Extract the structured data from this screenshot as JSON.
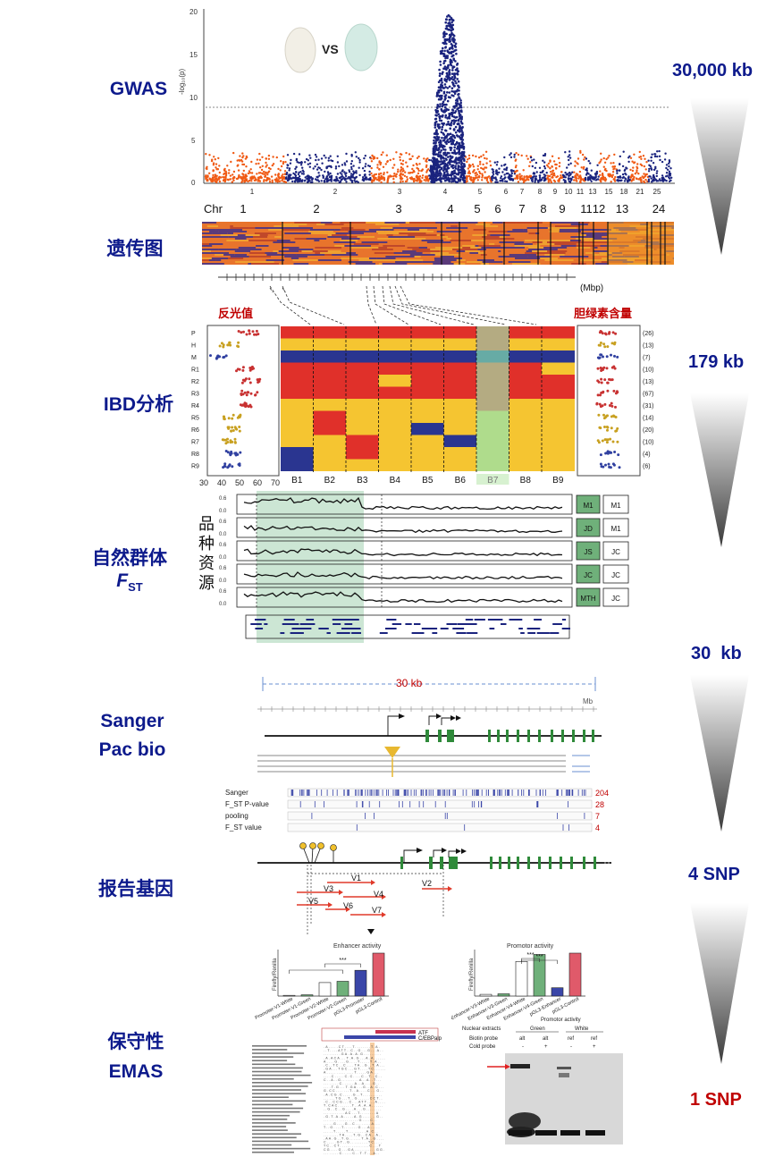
{
  "steps": {
    "gwas": "GWAS",
    "genetic_map": "遗传图",
    "ibd": "IBD分析",
    "fst_line1": "自然群体",
    "fst_line2_main": "F",
    "fst_line2_sub": "ST",
    "sanger": "Sanger",
    "pacbio": "Pac bio",
    "reporter": "报告基因",
    "conservation": "保守性",
    "emsa": "EMAS"
  },
  "resolution": {
    "r1": "30,000 kb",
    "r2": "179 kb",
    "r3": "30  kb",
    "r4": "4 SNP",
    "r5": "1 SNP"
  },
  "colors": {
    "navy": "#0d1a8c",
    "accent_red": "#c00000",
    "orange": "#f05a14",
    "blue": "#1a237e",
    "red_block": "#e0302a",
    "yellow_block": "#f5c531",
    "green_shade": "#cde8d6"
  },
  "gwas": {
    "vs": "VS",
    "ylabel": "-log₁₀(p)",
    "yticks": [
      "20",
      "15",
      "10",
      "5",
      "0"
    ],
    "chrs": [
      "1",
      "2",
      "3",
      "4",
      "5",
      "6",
      "7",
      "8",
      "9",
      "10",
      "11",
      "13",
      "15",
      "18",
      "21",
      "25"
    ]
  },
  "genetic_map": {
    "chr_label": "Chr",
    "chrs": [
      "1",
      "2",
      "3",
      "4",
      "5",
      "6",
      "7",
      "8",
      "9",
      "11",
      "12",
      "13",
      "24"
    ],
    "unit": "(Mbp)"
  },
  "ibd": {
    "left_title": "反光值",
    "right_title": "胆绿素含量",
    "rows": [
      "P",
      "H",
      "M",
      "R1",
      "R2",
      "R3",
      "R4",
      "R5",
      "R6",
      "R7",
      "R8",
      "R9"
    ],
    "counts": [
      "(26)",
      "(13)",
      "(7)",
      "(10)",
      "(13)",
      "(67)",
      "(31)",
      "(14)",
      "(20)",
      "(10)",
      "(4)",
      "(6)"
    ],
    "blocks": [
      "B1",
      "B2",
      "B3",
      "B4",
      "B5",
      "B6",
      "B7",
      "B8",
      "B9"
    ],
    "xticks_left": [
      "30",
      "40",
      "50",
      "60",
      "70"
    ]
  },
  "fst": {
    "vertical_label": [
      "品",
      "种",
      "资",
      "源"
    ],
    "ytick": "0.6",
    "ytick2": "0.0",
    "left_boxes": [
      "M1",
      "JD",
      "JS",
      "JC",
      "MTH"
    ],
    "right_boxes": [
      "M1",
      "M1",
      "JC",
      "JC",
      "JC"
    ]
  },
  "seq": {
    "scale": "30 kb",
    "unit": "Mb",
    "tracks": [
      "Sanger",
      "F_ST P-value",
      "pooling",
      "F_ST value"
    ],
    "track_counts": [
      "204",
      "28",
      "7",
      "4"
    ]
  },
  "reporter": {
    "constructs": [
      "V1",
      "V2",
      "V3",
      "V4",
      "V5",
      "V6",
      "V7"
    ],
    "enh_title": "Enhancer activity",
    "prom_title": "Promotor activity",
    "ylabel": "Firefly/Renilla",
    "sig": "***",
    "enh_cats": [
      "Promoter-V1-White",
      "Promoter-V1-Green",
      "Promoter-V2-White",
      "Promoter-V2-Green",
      "pGL3-Promoter",
      "pGL3-Control"
    ],
    "prom_cats": [
      "Enhancer-V3-White",
      "Enhancer-V3-Green",
      "Enhancer-V4-White",
      "Enhancer-V4-Green",
      "pGL3-Enhancer",
      "pGL3-Control"
    ]
  },
  "emsa": {
    "motif1": "ATF",
    "motif2": "C/EBPalp",
    "header": "Promotor activity",
    "row1": "Nuclear extracts",
    "row2": "Biotin probe",
    "row3": "Cold probe",
    "green": "Green",
    "white": "White",
    "alt": "alt",
    "ref": "ref",
    "minus": "-",
    "plus": "+"
  }
}
